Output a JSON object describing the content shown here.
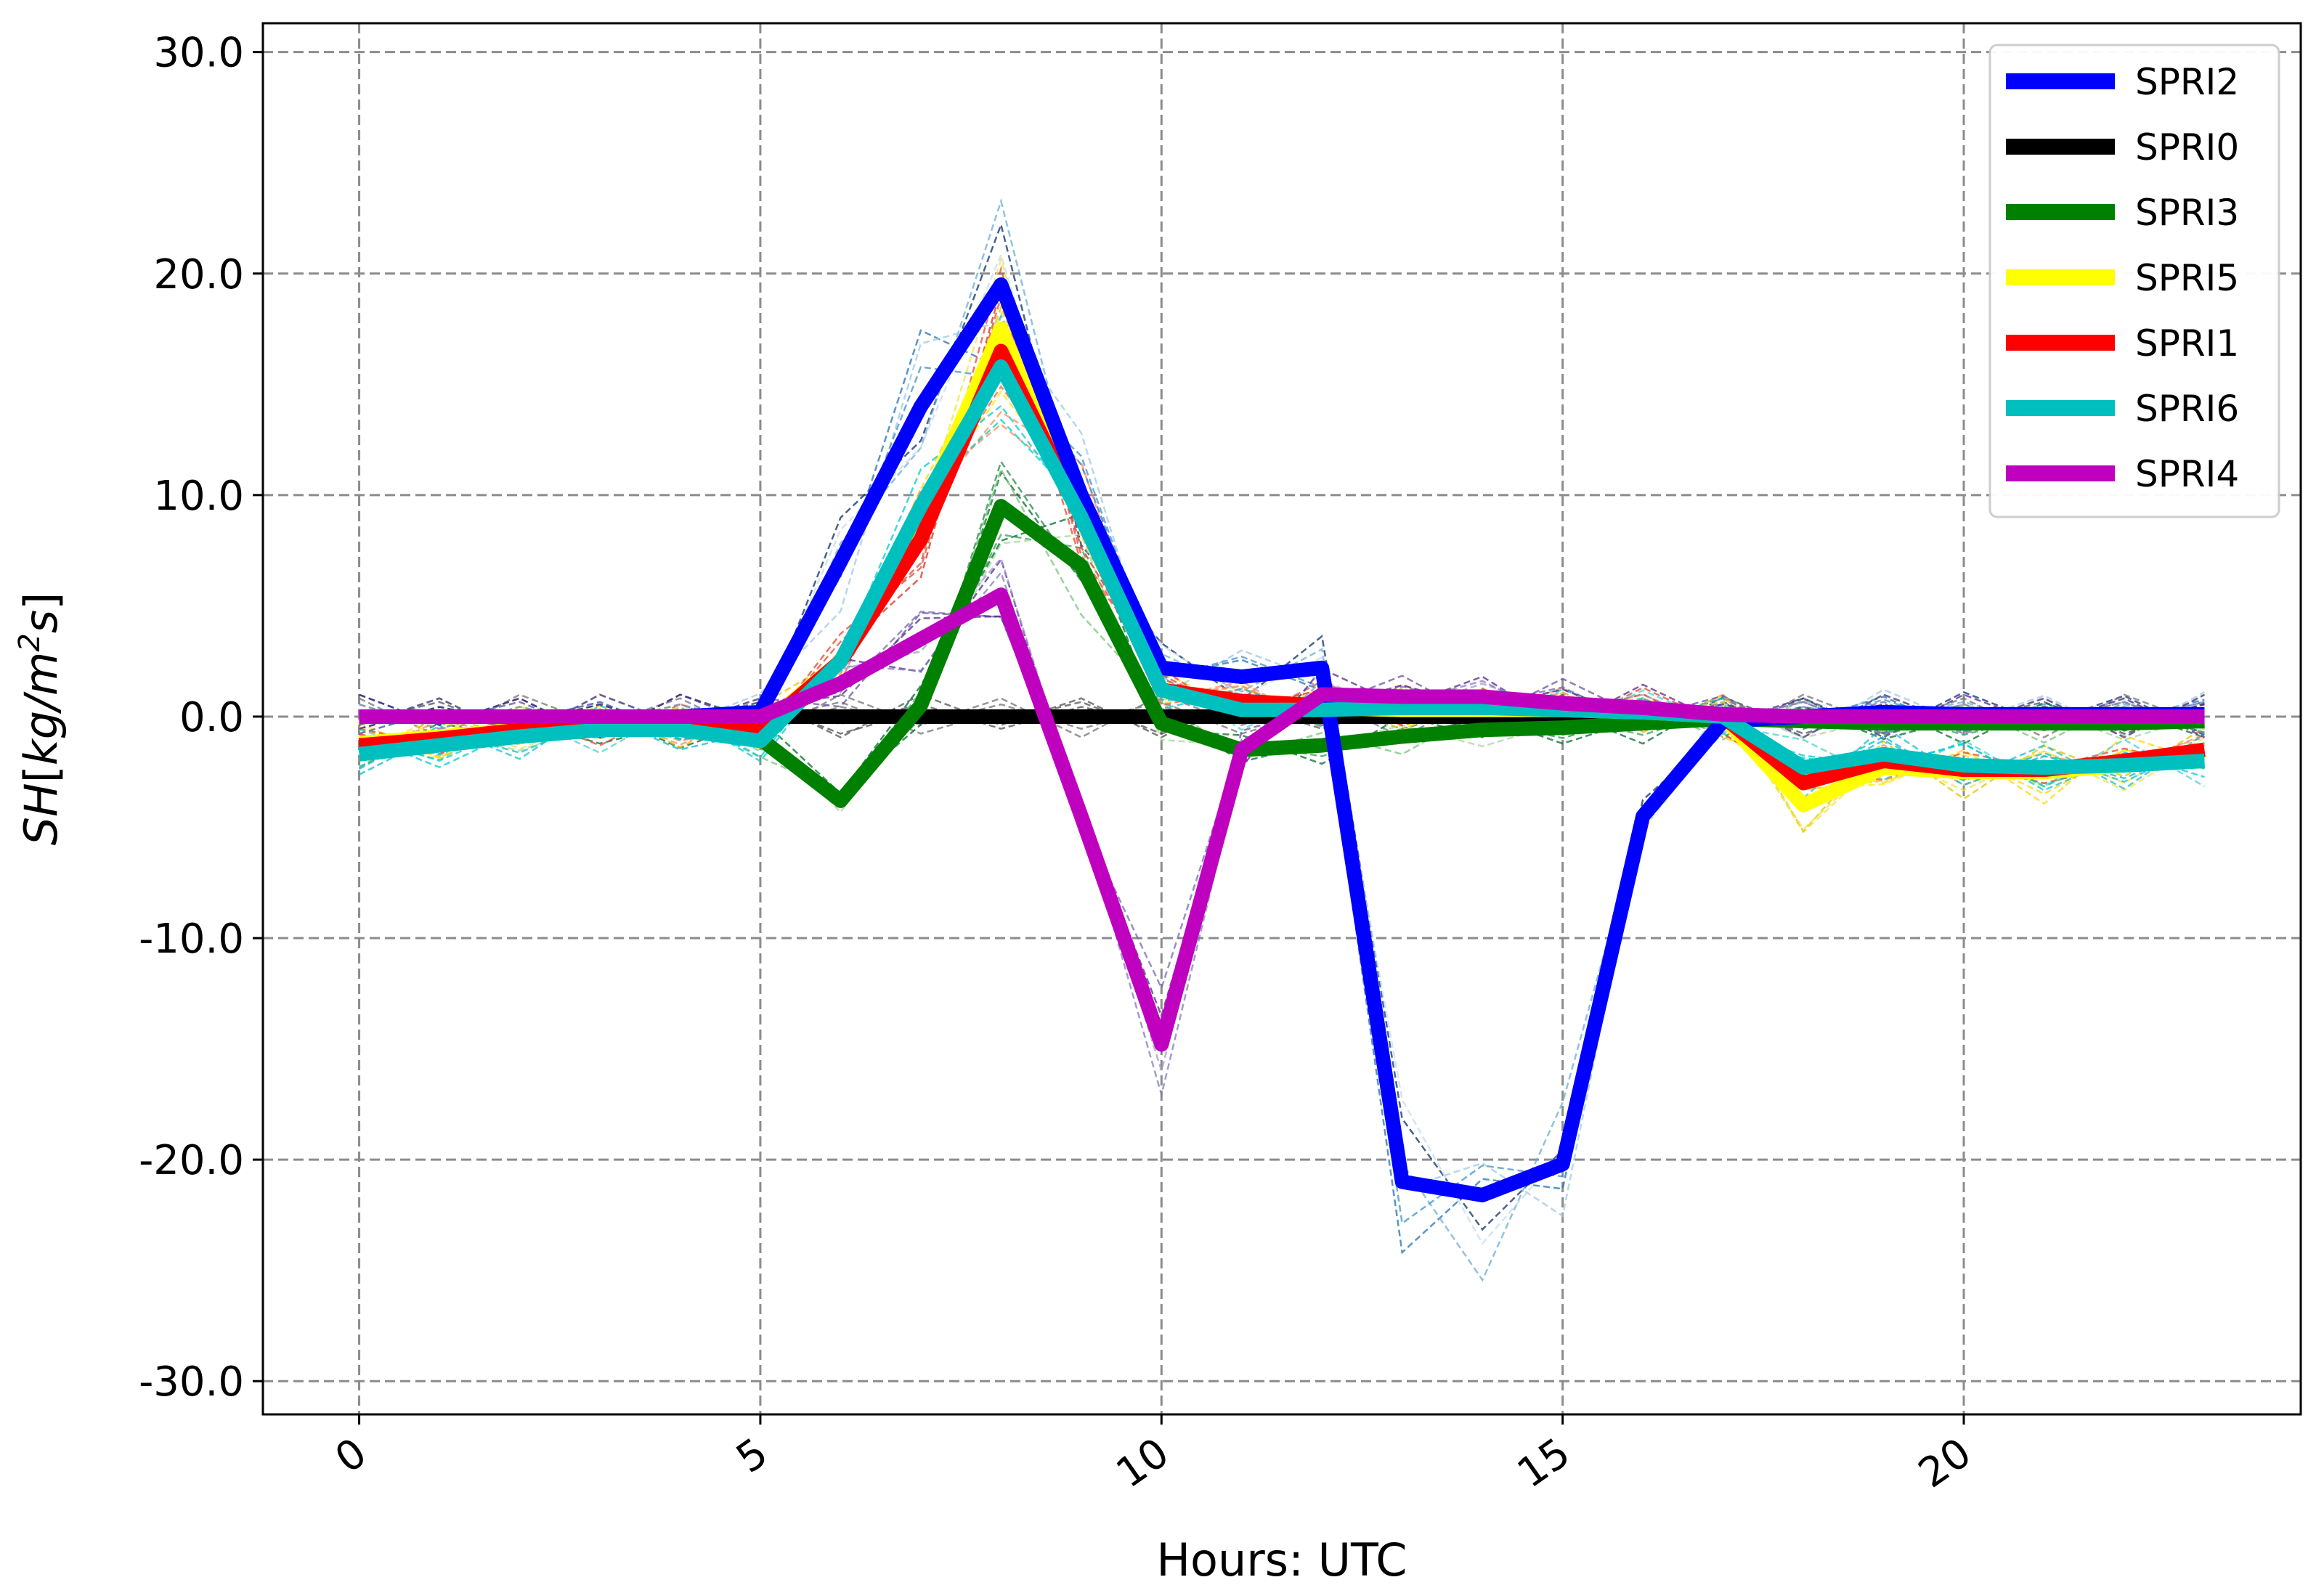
{
  "chart_data": {
    "type": "line",
    "title": "",
    "xlabel": "Hours: UTC",
    "ylabel_parts": [
      "SH",
      "[",
      "kg/m",
      "2",
      "s",
      "]"
    ],
    "xlim": [
      -1.2,
      24.2
    ],
    "ylim": [
      -31.5,
      31.3
    ],
    "x_ticks": [
      0,
      5,
      10,
      15,
      20
    ],
    "x_tick_labels": [
      "0",
      "5",
      "10",
      "15",
      "20"
    ],
    "y_ticks": [
      30,
      20,
      10,
      0,
      -10,
      -20,
      -30
    ],
    "y_tick_labels": [
      "30.0",
      "20.0",
      "10.0",
      "0.0",
      "-10.0",
      "-20.0",
      "-30.0"
    ],
    "grid": true,
    "legend_position": "top-right",
    "x": [
      0,
      1,
      2,
      3,
      4,
      5,
      6,
      7,
      8,
      9,
      10,
      11,
      12,
      13,
      14,
      15,
      16,
      17,
      18,
      19,
      20,
      21,
      22,
      23
    ],
    "series": [
      {
        "name": "SPRI2",
        "color": "#0000ff",
        "values": [
          0,
          0,
          0,
          0,
          0,
          0.2,
          7,
          14,
          19.5,
          10,
          2.2,
          1.8,
          2.2,
          -21,
          -21.6,
          -20.2,
          -4.5,
          -0.2,
          0,
          0.2,
          0.1,
          0.1,
          0.1,
          0.1
        ]
      },
      {
        "name": "SPRI0",
        "color": "#000000",
        "values": [
          0,
          0,
          0,
          0,
          0,
          0,
          0,
          0,
          0,
          0,
          0,
          0,
          0,
          0,
          0,
          0,
          0,
          0,
          0,
          0,
          0,
          0,
          0,
          0
        ]
      },
      {
        "name": "SPRI3",
        "color": "#008000",
        "values": [
          -1.5,
          -1.2,
          -0.8,
          -0.5,
          -0.5,
          -1,
          -3.8,
          0.5,
          9.5,
          6.8,
          -0.3,
          -1.5,
          -1.3,
          -0.9,
          -0.6,
          -0.5,
          -0.3,
          -0.1,
          -0.2,
          -0.3,
          -0.3,
          -0.3,
          -0.3,
          -0.2
        ]
      },
      {
        "name": "SPRI5",
        "color": "#ffff00",
        "values": [
          -1.2,
          -0.9,
          -0.6,
          -0.4,
          -0.4,
          -0.5,
          2.5,
          9,
          17.5,
          9,
          1.2,
          0.6,
          0.4,
          0.3,
          0.3,
          0.3,
          0.2,
          0,
          -4,
          -2.3,
          -2.5,
          -2.5,
          -2.2,
          -1.5
        ]
      },
      {
        "name": "SPRI1",
        "color": "#ff0000",
        "values": [
          -1.3,
          -1,
          -0.6,
          -0.4,
          -0.4,
          -0.6,
          2.5,
          8,
          16.5,
          9,
          1.2,
          0.7,
          0.5,
          0.4,
          0.4,
          0.4,
          0.3,
          0,
          -3,
          -2,
          -2.4,
          -2.4,
          -2,
          -1.5
        ]
      },
      {
        "name": "SPRI6",
        "color": "#00bfbf",
        "values": [
          -1.7,
          -1.3,
          -0.9,
          -0.6,
          -0.6,
          -1.1,
          2.5,
          9.5,
          15.8,
          9,
          1.2,
          0.3,
          0.3,
          0.4,
          0.4,
          0.3,
          0.2,
          0,
          -2.3,
          -1.7,
          -2.2,
          -2.3,
          -2.2,
          -2
        ]
      },
      {
        "name": "SPRI4",
        "color": "#bf00bf",
        "values": [
          0,
          0,
          0,
          0,
          0,
          0,
          1.5,
          3.5,
          5.5,
          -4.5,
          -14.8,
          -1.5,
          1,
          0.9,
          0.9,
          0.6,
          0.4,
          0.1,
          0,
          0,
          0,
          0,
          0,
          0
        ]
      }
    ],
    "legend": [
      "SPRI2",
      "SPRI0",
      "SPRI3",
      "SPRI5",
      "SPRI1",
      "SPRI6",
      "SPRI4"
    ]
  }
}
